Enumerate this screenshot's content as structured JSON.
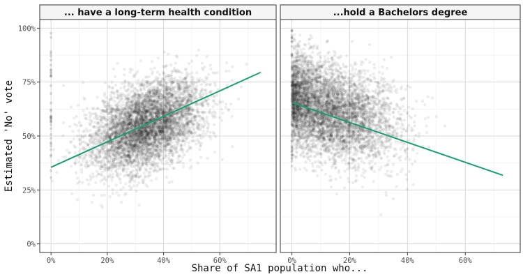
{
  "chart_data": {
    "type": "scatter",
    "xlabel": "Share of SA1 population who...",
    "ylabel": "Estimated 'No' vote",
    "y_range": [
      0,
      1
    ],
    "y_ticks": [
      0,
      0.25,
      0.5,
      0.75,
      1.0
    ],
    "y_tick_labels": [
      "0%",
      "25%",
      "50%",
      "75%",
      "100%"
    ],
    "grid": true,
    "fit_color": "#1b9e77",
    "panels": [
      {
        "title": "... have a long-term health condition",
        "x_range": [
          -0.04,
          0.8
        ],
        "x_ticks": [
          0,
          0.2,
          0.4,
          0.6
        ],
        "x_tick_labels": [
          "0%",
          "20%",
          "40%",
          "60%"
        ],
        "cloud_center": [
          0.34,
          0.55
        ],
        "cloud_spread": [
          0.1,
          0.1
        ],
        "fit_line": {
          "x": [
            0,
            0.745
          ],
          "y": [
            0.355,
            0.795
          ]
        }
      },
      {
        "title": "...hold a Bachelors degree",
        "x_range": [
          -0.04,
          0.79
        ],
        "x_ticks": [
          0,
          0.2,
          0.4,
          0.6
        ],
        "x_tick_labels": [
          "0%",
          "20%",
          "40%",
          "60%"
        ],
        "cloud_center": [
          0.12,
          0.62
        ],
        "cloud_spread": [
          0.12,
          0.11
        ],
        "fit_line": {
          "x": [
            0,
            0.73
          ],
          "y": [
            0.655,
            0.318
          ]
        }
      }
    ]
  }
}
